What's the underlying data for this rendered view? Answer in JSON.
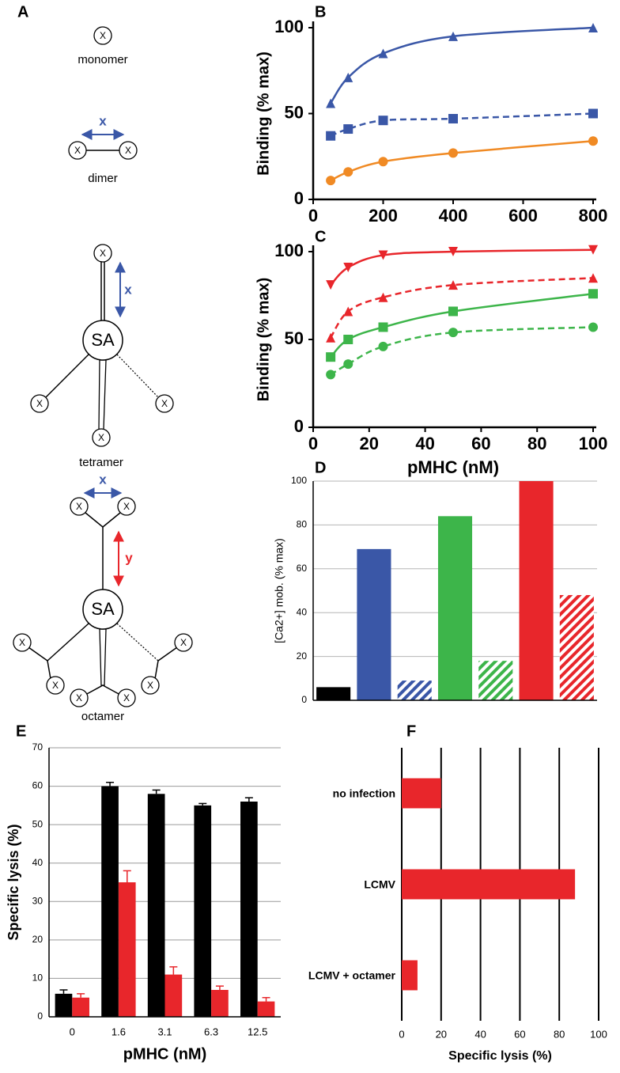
{
  "diagram": {
    "panel_label": "A",
    "node_label": "X",
    "hub_label": "SA",
    "distance_x": "x",
    "distance_y": "y",
    "captions": [
      "monomer",
      "dimer",
      "tetramer",
      "octamer"
    ]
  },
  "chart_data": [
    {
      "type": "line",
      "panel_label": "B",
      "ylabel": "Binding (% max)",
      "x": [
        50,
        100,
        200,
        400,
        800
      ],
      "xlim": [
        0,
        800
      ],
      "xticks": [
        0,
        200,
        400,
        600,
        800
      ],
      "ylim": [
        0,
        100
      ],
      "yticks": [
        0,
        50,
        100
      ],
      "series": [
        {
          "color": "#3a57a7",
          "marker": "triangle-up",
          "dashed": false,
          "values": [
            56,
            71,
            85,
            95,
            100
          ]
        },
        {
          "color": "#3a57a7",
          "marker": "square",
          "dashed": true,
          "values": [
            37,
            41,
            46,
            47,
            50
          ]
        },
        {
          "color": "#f08a24",
          "marker": "circle",
          "dashed": false,
          "values": [
            11,
            16,
            22,
            27,
            34
          ]
        }
      ]
    },
    {
      "type": "line",
      "panel_label": "C",
      "xlabel": "pMHC (nM)",
      "ylabel": "Binding (% max)",
      "x": [
        6.25,
        12.5,
        25,
        50,
        100
      ],
      "xlim": [
        0,
        100
      ],
      "xticks": [
        0,
        20,
        40,
        60,
        80,
        100
      ],
      "ylim": [
        0,
        100
      ],
      "yticks": [
        0,
        50,
        100
      ],
      "series": [
        {
          "color": "#e8262b",
          "marker": "triangle-down",
          "dashed": false,
          "values": [
            81,
            91,
            98,
            100,
            101
          ]
        },
        {
          "color": "#e8262b",
          "marker": "triangle-up",
          "dashed": true,
          "values": [
            51,
            66,
            74,
            81,
            85
          ]
        },
        {
          "color": "#3db54a",
          "marker": "square",
          "dashed": false,
          "values": [
            40,
            50,
            57,
            66,
            76
          ]
        },
        {
          "color": "#3db54a",
          "marker": "circle",
          "dashed": true,
          "values": [
            30,
            36,
            46,
            54,
            57
          ]
        }
      ]
    },
    {
      "type": "bar",
      "panel_label": "D",
      "ylabel": "[Ca2+] mob. (% max)",
      "categories": [
        null,
        null,
        null,
        null,
        null,
        null,
        null
      ],
      "values": [
        6,
        69,
        9,
        84,
        18,
        100,
        48
      ],
      "colors": [
        "#000000",
        "#3a57a7",
        "#3a57a7",
        "#3db54a",
        "#3db54a",
        "#e8262b",
        "#e8262b"
      ],
      "hatched": [
        false,
        false,
        true,
        false,
        true,
        false,
        true
      ],
      "ylim": [
        0,
        100
      ],
      "yticks": [
        0,
        20,
        40,
        60,
        80,
        100
      ],
      "grid": true
    },
    {
      "type": "grouped_bar",
      "panel_label": "E",
      "xlabel": "pMHC (nM)",
      "ylabel": "Specific lysis (%)",
      "categories": [
        "0",
        "1.6",
        "3.1",
        "6.3",
        "12.5"
      ],
      "series": [
        {
          "color": "#000000",
          "values": [
            6,
            60,
            58,
            55,
            56
          ],
          "errors": [
            1,
            1,
            1,
            0.5,
            1
          ]
        },
        {
          "color": "#e8262b",
          "values": [
            5,
            35,
            11,
            7,
            4
          ],
          "errors": [
            1,
            3,
            2,
            1,
            1
          ]
        }
      ],
      "ylim": [
        0,
        70
      ],
      "yticks": [
        0,
        10,
        20,
        30,
        40,
        50,
        60,
        70
      ],
      "grid": true
    },
    {
      "type": "hbar",
      "panel_label": "F",
      "xlabel": "Specific lysis (%)",
      "categories": [
        "no infection",
        "LCMV",
        "LCMV + octamer"
      ],
      "values": [
        20,
        88,
        8
      ],
      "color": "#e8262b",
      "xlim": [
        0,
        100
      ],
      "xticks": [
        0,
        20,
        40,
        60,
        80,
        100
      ],
      "grid": true
    }
  ]
}
